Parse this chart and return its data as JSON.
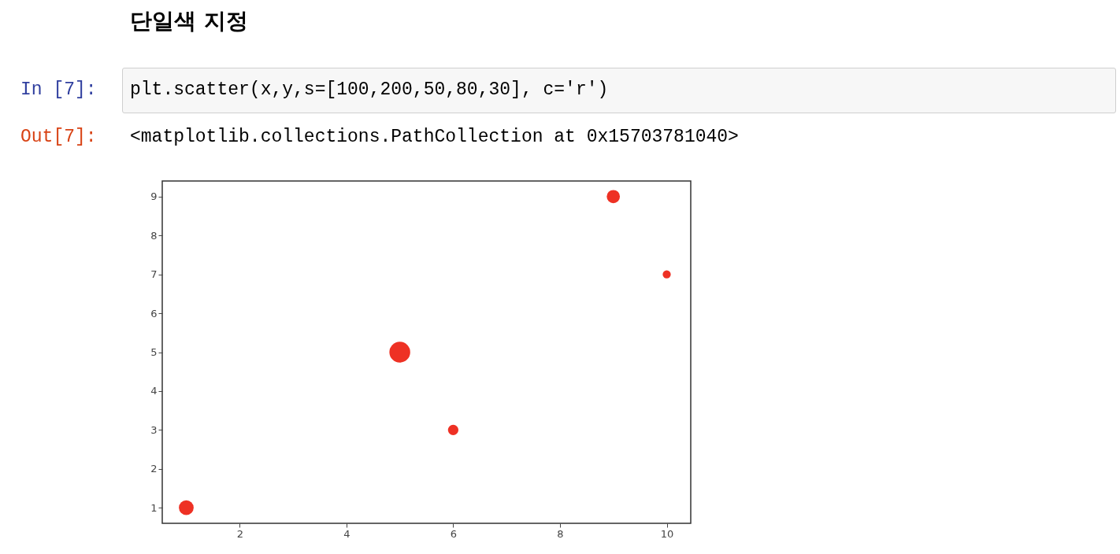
{
  "chart_data": {
    "type": "bubble",
    "title": "단일색 지정",
    "annotations": [
      "In [7]:",
      "plt.scatter(x,y,s=[100,200,50,80,30], c='r')",
      "Out[7]:",
      "<matplotlib.collections.PathCollection at 0x15703781040>"
    ],
    "x": [
      1,
      5,
      6,
      9,
      10
    ],
    "series": [
      {
        "color": "#ee3124",
        "values": [
          1,
          5,
          3,
          9,
          7
        ],
        "sizes": [
          0.5,
          1,
          0.25,
          0.4,
          0.15
        ]
      }
    ],
    "xlim": [
      0.55,
      10.45
    ],
    "xticks": [
      2,
      4,
      6,
      8,
      10
    ],
    "ylim": [
      0.6,
      9.4
    ],
    "yticks": [
      1,
      2,
      3,
      4,
      5,
      6,
      7,
      8,
      9
    ],
    "grid": false,
    "legend": false,
    "marker": "circle"
  }
}
